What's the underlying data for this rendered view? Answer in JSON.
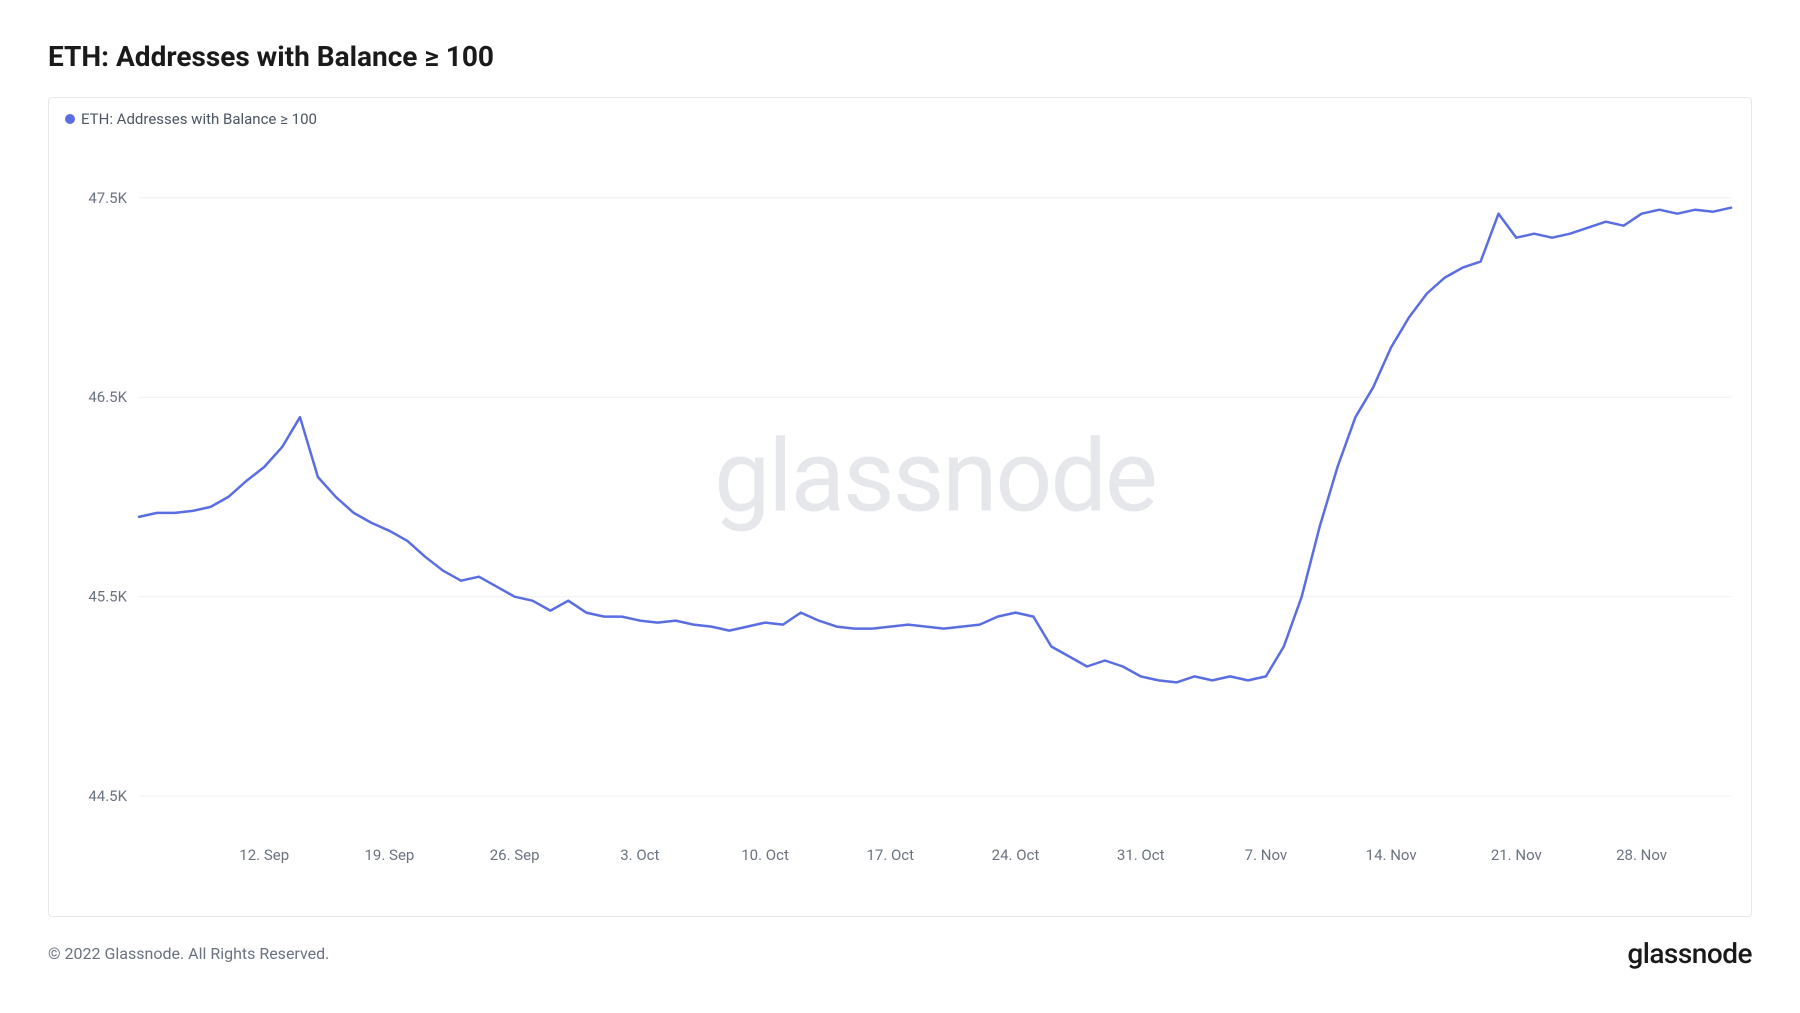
{
  "title": "ETH: Addresses with Balance ≥ 100",
  "legend": {
    "label": "ETH: Addresses with Balance ≥ 100",
    "color": "#5b6ee1"
  },
  "watermark": "glassnode",
  "copyright": "© 2022 Glassnode. All Rights Reserved.",
  "brand": "glassnode",
  "chart": {
    "type": "line",
    "background_color": "#ffffff",
    "grid_color": "#f0f0f0",
    "border_color": "#e5e7eb",
    "line_color": "#5b6ee1",
    "line_width": 2.5,
    "ylim": [
      44.3,
      47.9
    ],
    "y_ticks": [
      {
        "value": 44.5,
        "label": "44.5K"
      },
      {
        "value": 45.5,
        "label": "45.5K"
      },
      {
        "value": 46.5,
        "label": "46.5K"
      },
      {
        "value": 47.5,
        "label": "47.5K"
      }
    ],
    "x_ticks": [
      {
        "value": 7,
        "label": "12. Sep"
      },
      {
        "value": 14,
        "label": "19. Sep"
      },
      {
        "value": 21,
        "label": "26. Sep"
      },
      {
        "value": 28,
        "label": "3. Oct"
      },
      {
        "value": 35,
        "label": "10. Oct"
      },
      {
        "value": 42,
        "label": "17. Oct"
      },
      {
        "value": 49,
        "label": "24. Oct"
      },
      {
        "value": 56,
        "label": "31. Oct"
      },
      {
        "value": 63,
        "label": "7. Nov"
      },
      {
        "value": 70,
        "label": "14. Nov"
      },
      {
        "value": 77,
        "label": "21. Nov"
      },
      {
        "value": 84,
        "label": "28. Nov"
      }
    ],
    "xlim": [
      0,
      89
    ],
    "data": [
      [
        0,
        45.9
      ],
      [
        1,
        45.92
      ],
      [
        2,
        45.92
      ],
      [
        3,
        45.93
      ],
      [
        4,
        45.95
      ],
      [
        5,
        46.0
      ],
      [
        6,
        46.08
      ],
      [
        7,
        46.15
      ],
      [
        8,
        46.25
      ],
      [
        9,
        46.4
      ],
      [
        10,
        46.1
      ],
      [
        11,
        46.0
      ],
      [
        12,
        45.92
      ],
      [
        13,
        45.87
      ],
      [
        14,
        45.83
      ],
      [
        15,
        45.78
      ],
      [
        16,
        45.7
      ],
      [
        17,
        45.63
      ],
      [
        18,
        45.58
      ],
      [
        19,
        45.6
      ],
      [
        20,
        45.55
      ],
      [
        21,
        45.5
      ],
      [
        22,
        45.48
      ],
      [
        23,
        45.43
      ],
      [
        24,
        45.48
      ],
      [
        25,
        45.42
      ],
      [
        26,
        45.4
      ],
      [
        27,
        45.4
      ],
      [
        28,
        45.38
      ],
      [
        29,
        45.37
      ],
      [
        30,
        45.38
      ],
      [
        31,
        45.36
      ],
      [
        32,
        45.35
      ],
      [
        33,
        45.33
      ],
      [
        34,
        45.35
      ],
      [
        35,
        45.37
      ],
      [
        36,
        45.36
      ],
      [
        37,
        45.42
      ],
      [
        38,
        45.38
      ],
      [
        39,
        45.35
      ],
      [
        40,
        45.34
      ],
      [
        41,
        45.34
      ],
      [
        42,
        45.35
      ],
      [
        43,
        45.36
      ],
      [
        44,
        45.35
      ],
      [
        45,
        45.34
      ],
      [
        46,
        45.35
      ],
      [
        47,
        45.36
      ],
      [
        48,
        45.4
      ],
      [
        49,
        45.42
      ],
      [
        50,
        45.4
      ],
      [
        51,
        45.25
      ],
      [
        52,
        45.2
      ],
      [
        53,
        45.15
      ],
      [
        54,
        45.18
      ],
      [
        55,
        45.15
      ],
      [
        56,
        45.1
      ],
      [
        57,
        45.08
      ],
      [
        58,
        45.07
      ],
      [
        59,
        45.1
      ],
      [
        60,
        45.08
      ],
      [
        61,
        45.1
      ],
      [
        62,
        45.08
      ],
      [
        63,
        45.1
      ],
      [
        64,
        45.25
      ],
      [
        65,
        45.5
      ],
      [
        66,
        45.85
      ],
      [
        67,
        46.15
      ],
      [
        68,
        46.4
      ],
      [
        69,
        46.55
      ],
      [
        70,
        46.75
      ],
      [
        71,
        46.9
      ],
      [
        72,
        47.02
      ],
      [
        73,
        47.1
      ],
      [
        74,
        47.15
      ],
      [
        75,
        47.18
      ],
      [
        76,
        47.42
      ],
      [
        77,
        47.3
      ],
      [
        78,
        47.32
      ],
      [
        79,
        47.3
      ],
      [
        80,
        47.32
      ],
      [
        81,
        47.35
      ],
      [
        82,
        47.38
      ],
      [
        83,
        47.36
      ],
      [
        84,
        47.42
      ],
      [
        85,
        47.44
      ],
      [
        86,
        47.42
      ],
      [
        87,
        47.44
      ],
      [
        88,
        47.43
      ],
      [
        89,
        47.45
      ]
    ]
  }
}
